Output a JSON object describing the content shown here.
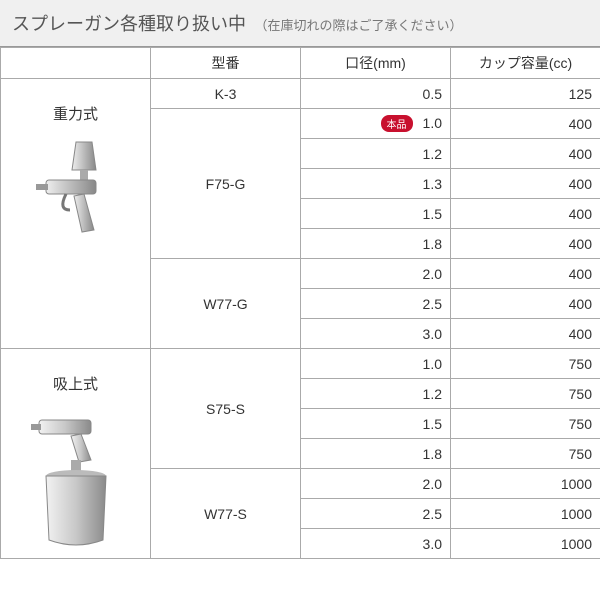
{
  "header": {
    "title": "スプレーガン各種取り扱い中",
    "subtitle": "（在庫切れの際はご了承ください）"
  },
  "columns": {
    "type": "",
    "model": "型番",
    "diameter": "口径(mm)",
    "capacity": "カップ容量(cc)"
  },
  "badge_label": "本品",
  "colors": {
    "header_bg": "#f0f0f0",
    "border": "#aaaaaa",
    "text": "#333333",
    "badge_bg": "#c8102e",
    "badge_text": "#ffffff"
  },
  "groups": [
    {
      "type_label": "重力式",
      "icon": "gravity",
      "models": [
        {
          "model": "K-3",
          "rows": [
            {
              "dia": "0.5",
              "cap": "125"
            }
          ]
        },
        {
          "model": "F75-G",
          "rows": [
            {
              "dia": "1.0",
              "cap": "400",
              "badge": true
            },
            {
              "dia": "1.2",
              "cap": "400"
            },
            {
              "dia": "1.3",
              "cap": "400"
            },
            {
              "dia": "1.5",
              "cap": "400"
            },
            {
              "dia": "1.8",
              "cap": "400"
            }
          ]
        },
        {
          "model": "W77-G",
          "rows": [
            {
              "dia": "2.0",
              "cap": "400"
            },
            {
              "dia": "2.5",
              "cap": "400"
            },
            {
              "dia": "3.0",
              "cap": "400"
            }
          ]
        }
      ]
    },
    {
      "type_label": "吸上式",
      "icon": "suction",
      "models": [
        {
          "model": "S75-S",
          "rows": [
            {
              "dia": "1.0",
              "cap": "750"
            },
            {
              "dia": "1.2",
              "cap": "750"
            },
            {
              "dia": "1.5",
              "cap": "750"
            },
            {
              "dia": "1.8",
              "cap": "750"
            }
          ]
        },
        {
          "model": "W77-S",
          "rows": [
            {
              "dia": "2.0",
              "cap": "1000"
            },
            {
              "dia": "2.5",
              "cap": "1000"
            },
            {
              "dia": "3.0",
              "cap": "1000"
            }
          ]
        }
      ]
    }
  ]
}
